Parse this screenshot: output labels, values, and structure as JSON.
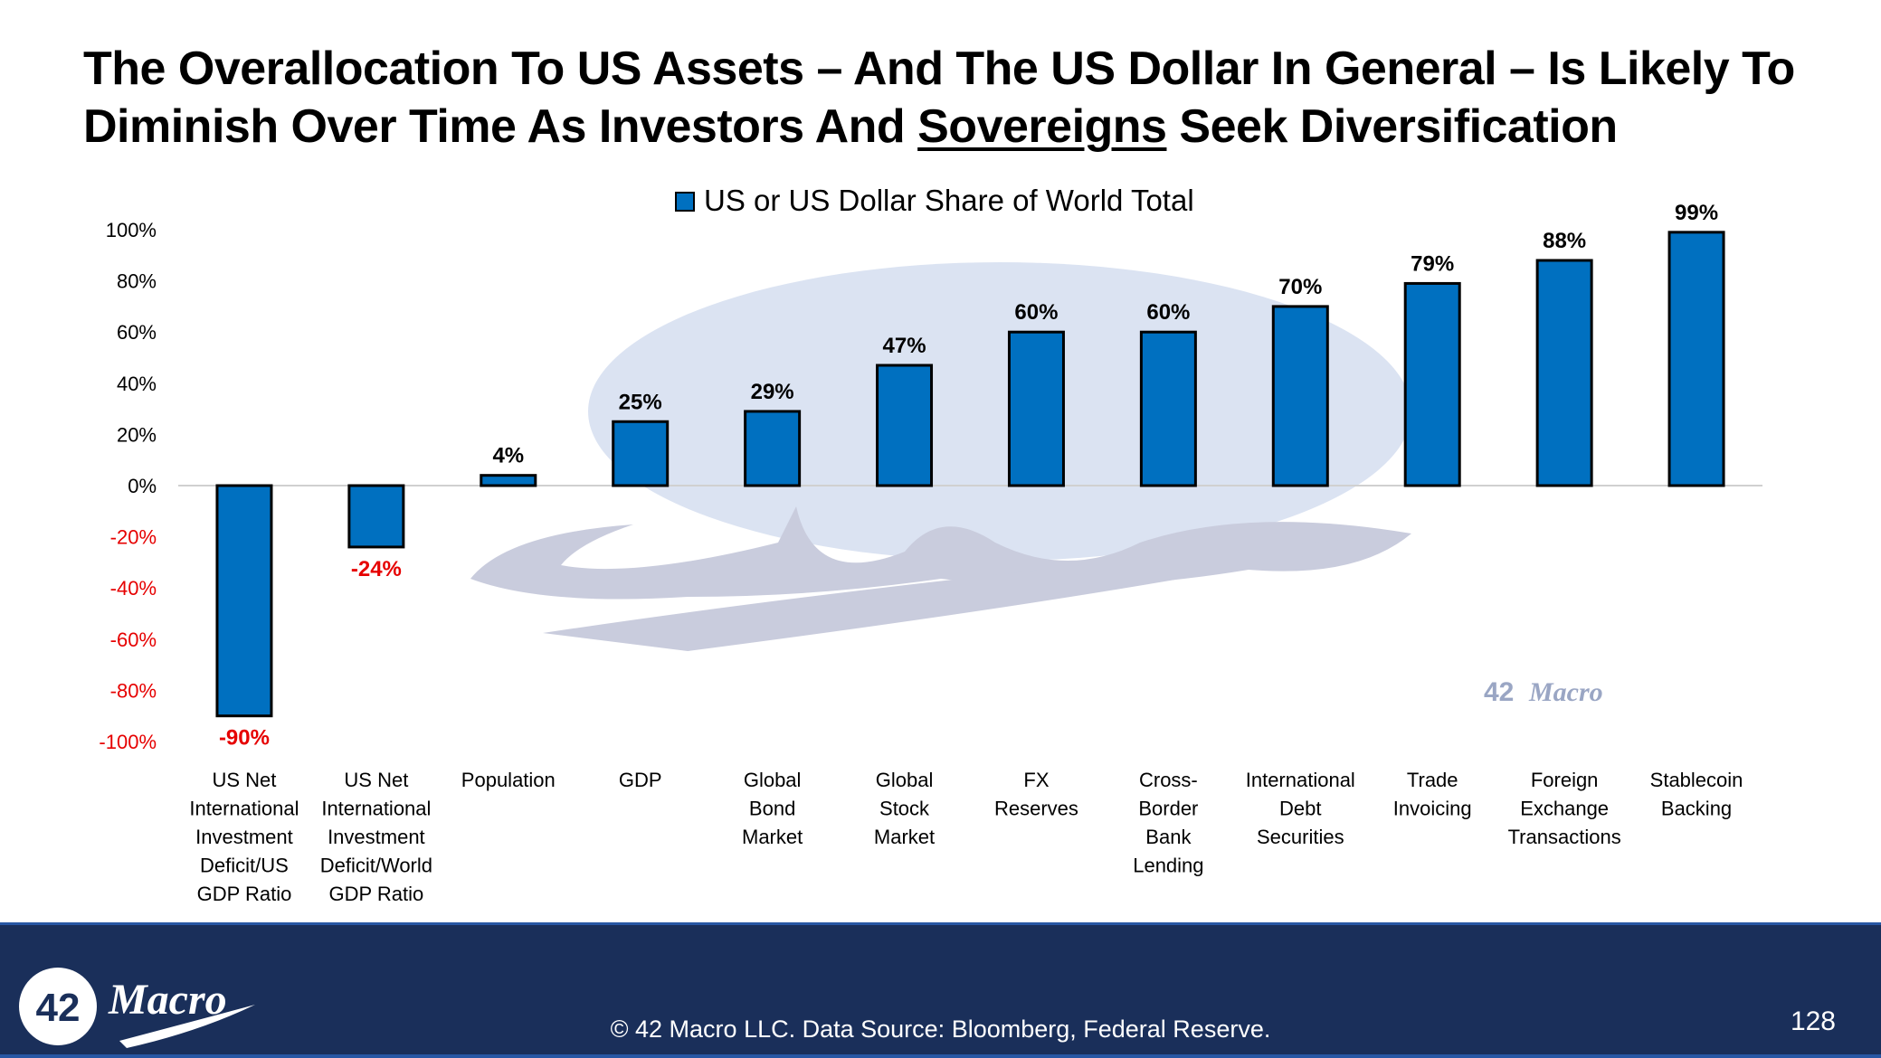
{
  "slide": {
    "title_part1": "The Overallocation To US Assets – And The US Dollar In General – Is Likely To Diminish Over Time As Investors And ",
    "title_underlined": "Sovereigns",
    "title_part2": " Seek Diversification",
    "footer_copyright": "© 42 Macro LLC. Data Source: Bloomberg, Federal Reserve.",
    "page_number": "128",
    "logo_number": "42",
    "logo_word": "Macro",
    "watermark_number": "42",
    "watermark_word": "Macro"
  },
  "colors": {
    "bar_fill": "#0070c0",
    "bar_stroke": "#000000",
    "negative_text": "#e60000",
    "positive_text": "#000000",
    "footer_bg": "#1a2f5a",
    "watermark": "#c9d4ea"
  },
  "chart_data": {
    "type": "bar",
    "title": "",
    "legend": {
      "label": "US or US Dollar Share of World Total",
      "position": "top-center"
    },
    "categories": [
      [
        "US Net",
        "International",
        "Investment",
        "Deficit/US",
        "GDP Ratio"
      ],
      [
        "US Net",
        "International",
        "Investment",
        "Deficit/World",
        "GDP Ratio"
      ],
      [
        "Population"
      ],
      [
        "GDP"
      ],
      [
        "Global",
        "Bond",
        "Market"
      ],
      [
        "Global",
        "Stock",
        "Market"
      ],
      [
        "FX",
        "Reserves"
      ],
      [
        "Cross-",
        "Border",
        "Bank",
        "Lending"
      ],
      [
        "International",
        "Debt",
        "Securities"
      ],
      [
        "Trade",
        "Invoicing"
      ],
      [
        "Foreign",
        "Exchange",
        "Transactions"
      ],
      [
        "Stablecoin",
        "Backing"
      ]
    ],
    "series": [
      {
        "name": "US or US Dollar Share of World Total",
        "values": [
          -90,
          -24,
          4,
          25,
          29,
          47,
          60,
          60,
          70,
          79,
          88,
          99
        ]
      }
    ],
    "data_labels": [
      "-90%",
      "-24%",
      "4%",
      "25%",
      "29%",
      "47%",
      "60%",
      "60%",
      "70%",
      "79%",
      "88%",
      "99%"
    ],
    "yticks": [
      100,
      80,
      60,
      40,
      20,
      0,
      -20,
      -40,
      -60,
      -80,
      -100
    ],
    "ytick_labels": [
      "100%",
      "80%",
      "60%",
      "40%",
      "20%",
      "0%",
      "-20%",
      "-40%",
      "-60%",
      "-80%",
      "-100%"
    ],
    "ylim": [
      -100,
      100
    ],
    "xlabel": "",
    "ylabel": "",
    "grid": false
  }
}
